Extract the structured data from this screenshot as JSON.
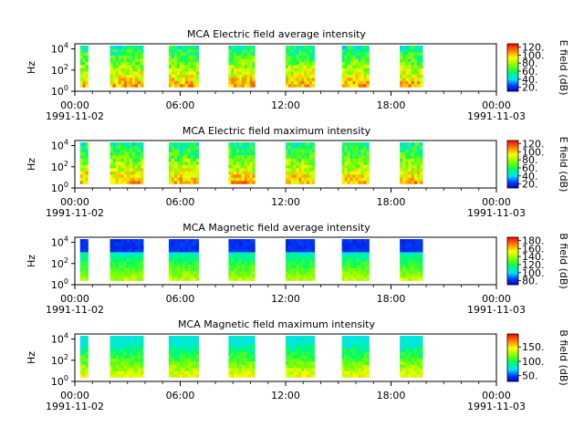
{
  "chart_data": [
    {
      "type": "heatmap",
      "title": "MCA  Electric field average intensity",
      "ylabel": "Hz",
      "ylim": [
        1,
        30000
      ],
      "yscale": "log",
      "y_ticks": [
        {
          "base": "10",
          "exp": "0"
        },
        {
          "base": "10",
          "exp": "2"
        },
        {
          "base": "10",
          "exp": "4"
        }
      ],
      "x_ticks": [
        "00:00",
        "06:00",
        "12:00",
        "18:00",
        "00:00"
      ],
      "x_dates": [
        "1991-11-02",
        "1991-11-03"
      ],
      "xlim_hours": [
        0,
        24
      ],
      "colorbar": {
        "label": "E field (dB)",
        "range": [
          10,
          128
        ],
        "ticks": [
          "20.",
          "40.",
          "60.",
          "80.",
          "100.",
          "120."
        ]
      },
      "data_intervals_hours": [
        [
          0.3,
          0.75
        ],
        [
          2.0,
          3.9
        ],
        [
          5.35,
          7.05
        ],
        [
          8.75,
          10.25
        ],
        [
          12.0,
          13.65
        ],
        [
          15.2,
          16.75
        ],
        [
          18.5,
          19.8
        ]
      ],
      "intensity": "high"
    },
    {
      "type": "heatmap",
      "title": "MCA  Electric field maximum intensity",
      "ylabel": "Hz",
      "ylim": [
        1,
        30000
      ],
      "yscale": "log",
      "y_ticks": [
        {
          "base": "10",
          "exp": "0"
        },
        {
          "base": "10",
          "exp": "2"
        },
        {
          "base": "10",
          "exp": "4"
        }
      ],
      "x_ticks": [
        "00:00",
        "06:00",
        "12:00",
        "18:00",
        "00:00"
      ],
      "x_dates": [
        "1991-11-02",
        "1991-11-03"
      ],
      "xlim_hours": [
        0,
        24
      ],
      "colorbar": {
        "label": "E field (dB)",
        "range": [
          10,
          128
        ],
        "ticks": [
          "20.",
          "40.",
          "60.",
          "80.",
          "100.",
          "120."
        ]
      },
      "data_intervals_hours": [
        [
          0.3,
          0.75
        ],
        [
          2.0,
          3.9
        ],
        [
          5.35,
          7.05
        ],
        [
          8.75,
          10.25
        ],
        [
          12.0,
          13.65
        ],
        [
          15.2,
          16.75
        ],
        [
          18.5,
          19.8
        ]
      ],
      "intensity": "high"
    },
    {
      "type": "heatmap",
      "title": "MCA  Magnetic field average intensity",
      "ylabel": "Hz",
      "ylim": [
        1,
        30000
      ],
      "yscale": "log",
      "y_ticks": [
        {
          "base": "10",
          "exp": "0"
        },
        {
          "base": "10",
          "exp": "2"
        },
        {
          "base": "10",
          "exp": "4"
        }
      ],
      "x_ticks": [
        "00:00",
        "06:00",
        "12:00",
        "18:00",
        "00:00"
      ],
      "x_dates": [
        "1991-11-02",
        "1991-11-03"
      ],
      "xlim_hours": [
        0,
        24
      ],
      "colorbar": {
        "label": "B field (dB)",
        "range": [
          70,
          188
        ],
        "ticks": [
          "80.",
          "100.",
          "120.",
          "140.",
          "160.",
          "180."
        ]
      },
      "data_intervals_hours": [
        [
          0.3,
          0.75
        ],
        [
          2.0,
          3.9
        ],
        [
          5.35,
          7.05
        ],
        [
          8.75,
          10.25
        ],
        [
          12.0,
          13.65
        ],
        [
          15.2,
          16.75
        ],
        [
          18.5,
          19.8
        ]
      ],
      "intensity": "low"
    },
    {
      "type": "heatmap",
      "title": "MCA  Magnetic field maximum intensity",
      "ylabel": "Hz",
      "ylim": [
        1,
        30000
      ],
      "yscale": "log",
      "y_ticks": [
        {
          "base": "10",
          "exp": "0"
        },
        {
          "base": "10",
          "exp": "2"
        },
        {
          "base": "10",
          "exp": "4"
        }
      ],
      "x_ticks": [
        "00:00",
        "06:00",
        "12:00",
        "18:00",
        "00:00"
      ],
      "x_dates": [
        "1991-11-02",
        "1991-11-03"
      ],
      "xlim_hours": [
        0,
        24
      ],
      "colorbar": {
        "label": "B field (dB)",
        "range": [
          30,
          195
        ],
        "ticks": [
          "50.",
          "100.",
          "150."
        ]
      },
      "data_intervals_hours": [
        [
          0.3,
          0.75
        ],
        [
          2.0,
          3.9
        ],
        [
          5.35,
          7.05
        ],
        [
          8.75,
          10.25
        ],
        [
          12.0,
          13.65
        ],
        [
          15.2,
          16.75
        ],
        [
          18.5,
          19.8
        ]
      ],
      "intensity": "mid"
    }
  ]
}
